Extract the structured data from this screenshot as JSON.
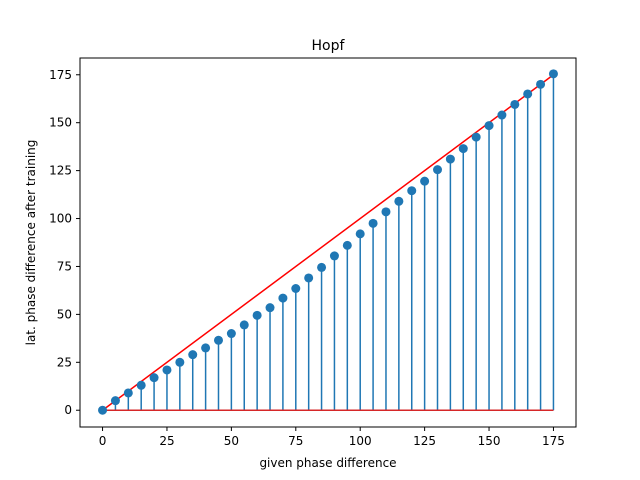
{
  "chart_data": {
    "type": "scatter",
    "title": "Hopf",
    "xlabel": "given phase difference",
    "ylabel": "lat. phase difference after training",
    "xlim": [
      -8.75,
      183.75
    ],
    "ylim": [
      -8.75,
      183.75
    ],
    "xticks": [
      0,
      25,
      50,
      75,
      100,
      125,
      150,
      175
    ],
    "yticks": [
      0,
      25,
      50,
      75,
      100,
      125,
      150,
      175
    ],
    "grid": false,
    "series": [
      {
        "style": "stem",
        "marker_color": "#1f77b4",
        "baseline": 0,
        "baseline_color": "#d62728",
        "x": [
          0,
          5,
          10,
          15,
          20,
          25,
          30,
          35,
          40,
          45,
          50,
          55,
          60,
          65,
          70,
          75,
          80,
          85,
          90,
          95,
          100,
          105,
          110,
          115,
          120,
          125,
          130,
          135,
          140,
          145,
          150,
          155,
          160,
          165,
          170,
          175
        ],
        "y": [
          0,
          5,
          9,
          13,
          17,
          21,
          25,
          29,
          32.5,
          36.5,
          40,
          44.5,
          49.5,
          53.5,
          58.5,
          63.5,
          69,
          74.5,
          80.5,
          86,
          92,
          97.5,
          103.5,
          109,
          114.5,
          119.5,
          125.5,
          131,
          136.5,
          142.5,
          148.5,
          154,
          159.5,
          165,
          170,
          175.5
        ]
      },
      {
        "style": "line",
        "color": "#ff0000",
        "x": [
          0,
          175
        ],
        "y": [
          0,
          175
        ]
      }
    ]
  }
}
